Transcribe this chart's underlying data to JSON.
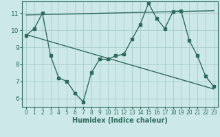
{
  "xlabel": "Humidex (Indice chaleur)",
  "bg_color": "#cce8e8",
  "line_color": "#2e6b5e",
  "grid_color": "#aacccc",
  "xlim": [
    -0.5,
    23.5
  ],
  "ylim": [
    5.5,
    11.7
  ],
  "yticks": [
    6,
    7,
    8,
    9,
    10,
    11
  ],
  "xticks": [
    0,
    1,
    2,
    3,
    4,
    5,
    6,
    7,
    8,
    9,
    10,
    11,
    12,
    13,
    14,
    15,
    16,
    17,
    18,
    19,
    20,
    21,
    22,
    23
  ],
  "line1_x": [
    0,
    1,
    2,
    3,
    4,
    5,
    6,
    7,
    8,
    9,
    10,
    11,
    12,
    13,
    14,
    15,
    16,
    17,
    18,
    19,
    20,
    21,
    22,
    23
  ],
  "line1_y": [
    9.7,
    10.1,
    11.0,
    8.5,
    7.2,
    7.0,
    6.3,
    5.8,
    7.5,
    8.3,
    8.3,
    8.5,
    8.6,
    9.5,
    10.35,
    11.6,
    10.7,
    10.1,
    11.1,
    11.15,
    9.4,
    8.5,
    7.3,
    6.7
  ],
  "line2_x": [
    0,
    23
  ],
  "line2_y": [
    10.9,
    11.15
  ],
  "line3_x": [
    0,
    23
  ],
  "line3_y": [
    9.75,
    6.55
  ],
  "marker_size": 2.5,
  "line_width": 1.0
}
